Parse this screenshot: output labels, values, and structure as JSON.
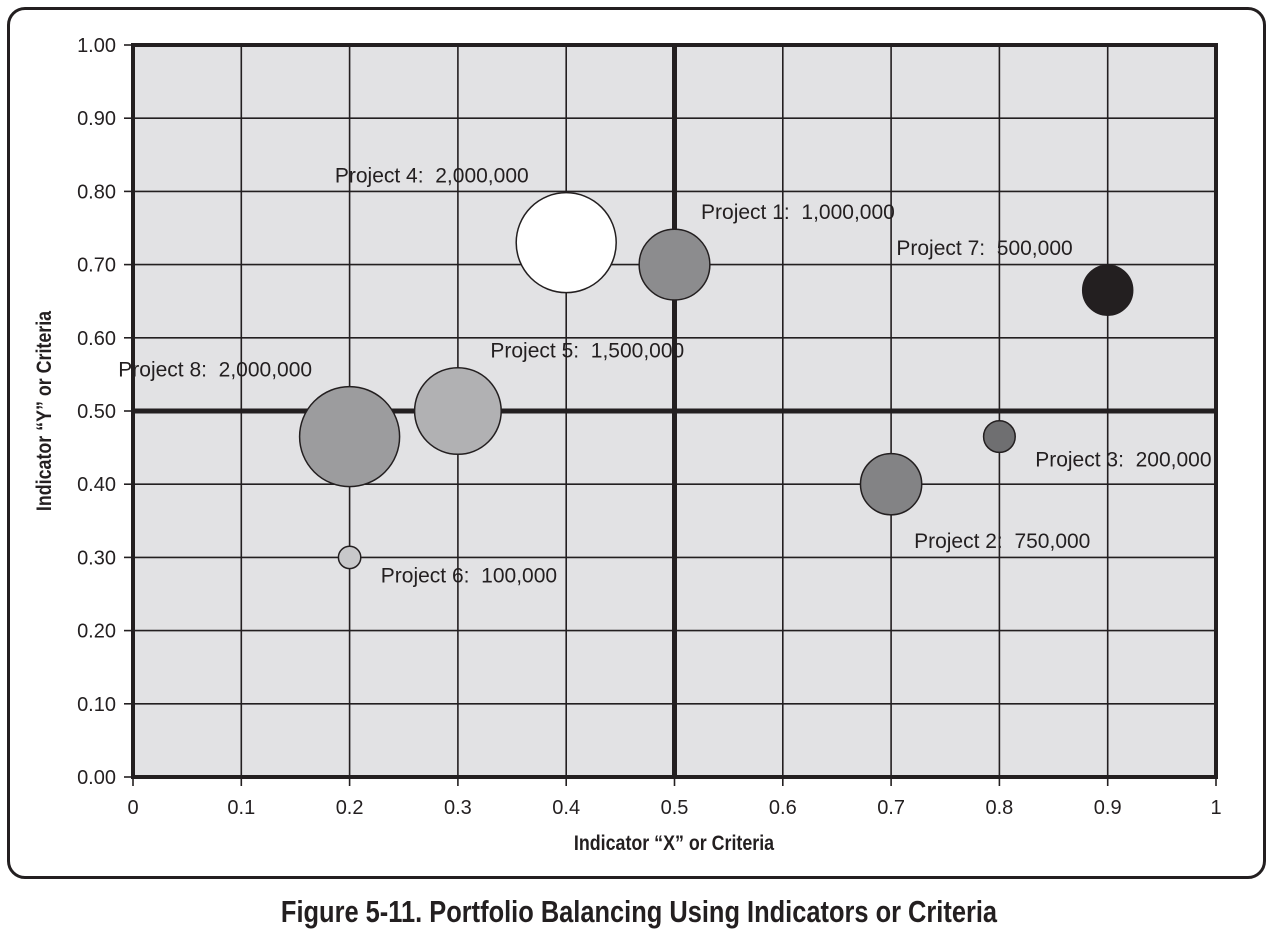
{
  "caption": "Figure 5-11. Portfolio Balancing Using Indicators or Criteria",
  "chart_data": {
    "type": "scatter",
    "title": "",
    "xlabel": "Indicator “X” or Criteria",
    "ylabel": "Indicator “Y” or Criteria",
    "xlim": [
      0,
      1
    ],
    "ylim": [
      0,
      1
    ],
    "x_ticks": [
      "0",
      "0.1",
      "0.2",
      "0.3",
      "0.4",
      "0.5",
      "0.6",
      "0.7",
      "0.8",
      "0.9",
      "1"
    ],
    "y_ticks": [
      "0.00",
      "0.10",
      "0.20",
      "0.30",
      "0.40",
      "0.50",
      "0.60",
      "0.70",
      "0.80",
      "0.90",
      "1.00"
    ],
    "grid": true,
    "quadrant_lines": {
      "x": 0.5,
      "y": 0.5
    },
    "plot_background": "#e2e2e4",
    "points": [
      {
        "label": "Project 1:",
        "value": "1,000,000",
        "size": 1000000,
        "x": 0.5,
        "y": 0.7,
        "color": "#8c8c8e",
        "label_pos": "upper-right"
      },
      {
        "label": "Project 2:",
        "value": "750,000",
        "size": 750000,
        "x": 0.7,
        "y": 0.4,
        "color": "#838385",
        "label_pos": "lower-right"
      },
      {
        "label": "Project 3:",
        "value": "200,000",
        "size": 200000,
        "x": 0.8,
        "y": 0.465,
        "color": "#6f6f71",
        "label_pos": "lower-right"
      },
      {
        "label": "Project 4:",
        "value": "2,000,000",
        "size": 2000000,
        "x": 0.4,
        "y": 0.73,
        "color": "#ffffff",
        "label_pos": "upper-left"
      },
      {
        "label": "Project 5:",
        "value": "1,500,000",
        "size": 1500000,
        "x": 0.3,
        "y": 0.5,
        "color": "#b1b1b3",
        "label_pos": "upper-right"
      },
      {
        "label": "Project 6:",
        "value": "100,000",
        "size": 100000,
        "x": 0.2,
        "y": 0.3,
        "color": "#c8c8ca",
        "label_pos": "lower-right"
      },
      {
        "label": "Project 7:",
        "value": "500,000",
        "size": 500000,
        "x": 0.9,
        "y": 0.665,
        "color": "#231f20",
        "label_pos": "upper-left"
      },
      {
        "label": "Project 8:",
        "value": "2,000,000",
        "size": 2000000,
        "x": 0.2,
        "y": 0.465,
        "color": "#9c9c9e",
        "label_pos": "upper-left"
      }
    ]
  }
}
